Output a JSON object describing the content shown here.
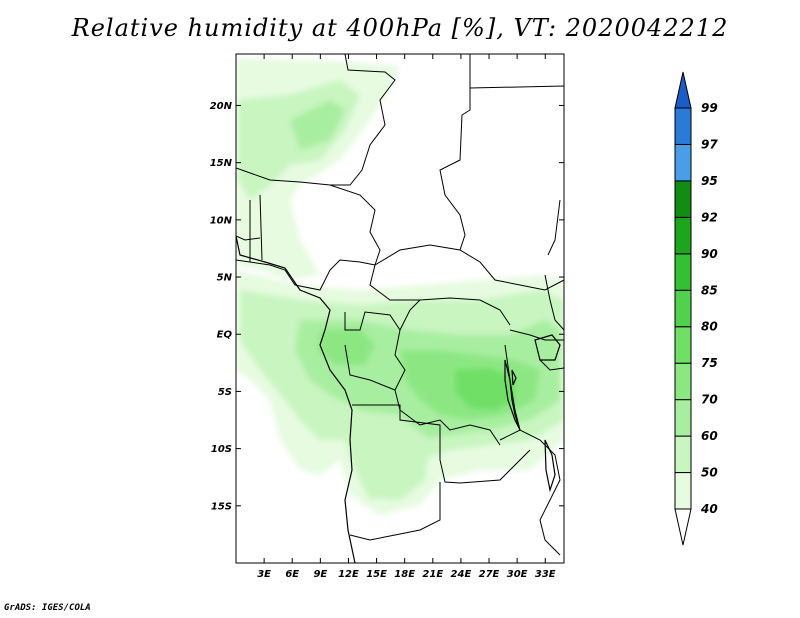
{
  "title": "Relative humidity at 400hPa [%], VT: 2020042212",
  "credit": "GrADS: IGES/COLA",
  "map": {
    "variable": "Relative humidity",
    "level": "400hPa",
    "unit": "%",
    "valid_time": "2020042212",
    "lat_ticks": [
      "20N",
      "15N",
      "10N",
      "5N",
      "EQ",
      "5S",
      "10S",
      "15S"
    ],
    "lon_ticks": [
      "3E",
      "6E",
      "9E",
      "12E",
      "15E",
      "18E",
      "21E",
      "24E",
      "27E",
      "30E",
      "33E"
    ],
    "extent": {
      "lon_min": 0,
      "lon_max": 35,
      "lat_min": -20,
      "lat_max": 24.5
    }
  },
  "colorbar": {
    "levels": [
      "40",
      "50",
      "60",
      "70",
      "75",
      "80",
      "85",
      "90",
      "92",
      "95",
      "97",
      "99"
    ],
    "colors": [
      "#ffffff",
      "#e6fbe0",
      "#c8f5c0",
      "#a8eea0",
      "#8ce783",
      "#6fdf66",
      "#52d24c",
      "#34c032",
      "#1ea51e",
      "#128c12",
      "#4a9ee8",
      "#2a7ad8",
      "#1a5cc8"
    ]
  }
}
